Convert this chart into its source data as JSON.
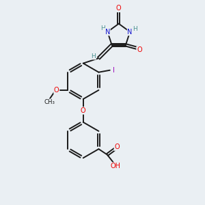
{
  "background_color": "#eaeff3",
  "bond_color": "#1a1a1a",
  "atom_colors": {
    "O": "#ee0000",
    "N": "#1111cc",
    "H": "#4a9090",
    "I": "#9900bb",
    "default": "#1a1a1a"
  },
  "figsize": [
    3.0,
    3.0
  ],
  "dpi": 100
}
